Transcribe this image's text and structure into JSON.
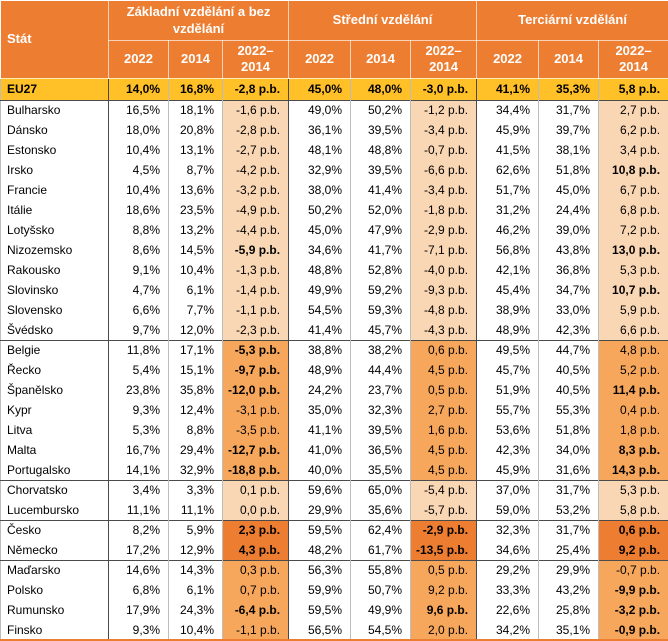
{
  "chart_data": {
    "type": "table",
    "corner_label": "Stát",
    "column_groups": [
      "Základní vzdělání a bez vzdělání",
      "Střední vzdělání",
      "Terciární vzdělání"
    ],
    "sub_columns": [
      "2022",
      "2014",
      "2022–2014"
    ],
    "rows": [
      {
        "name": "EU27",
        "band": "gold",
        "bold_all": true,
        "cells": [
          "14,0%",
          "16,8%",
          "-2,8 p.b.",
          "45,0%",
          "48,0%",
          "-3,0 p.b.",
          "41,1%",
          "35,3%",
          "5,8 p.b."
        ]
      },
      {
        "name": "Bulharsko",
        "band": "light",
        "sep_above": true,
        "cells": [
          "16,5%",
          "18,1%",
          "-1,6 p.b.",
          "49,0%",
          "50,2%",
          "-1,2 p.b.",
          "34,4%",
          "31,7%",
          "2,7 p.b."
        ]
      },
      {
        "name": "Dánsko",
        "band": "light",
        "cells": [
          "18,0%",
          "20,8%",
          "-2,8 p.b.",
          "36,1%",
          "39,5%",
          "-3,4 p.b.",
          "45,9%",
          "39,7%",
          "6,2 p.b."
        ]
      },
      {
        "name": "Estonsko",
        "band": "light",
        "cells": [
          "10,4%",
          "13,1%",
          "-2,7 p.b.",
          "48,1%",
          "48,8%",
          "-0,7 p.b.",
          "41,5%",
          "38,1%",
          "3,4 p.b."
        ]
      },
      {
        "name": "Irsko",
        "band": "light",
        "bold": [
          8
        ],
        "cells": [
          "4,5%",
          "8,7%",
          "-4,2 p.b.",
          "32,9%",
          "39,5%",
          "-6,6 p.b.",
          "62,6%",
          "51,8%",
          "10,8 p.b."
        ]
      },
      {
        "name": "Francie",
        "band": "light",
        "cells": [
          "10,4%",
          "13,6%",
          "-3,2 p.b.",
          "38,0%",
          "41,4%",
          "-3,4 p.b.",
          "51,7%",
          "45,0%",
          "6,7 p.b."
        ]
      },
      {
        "name": "Itálie",
        "band": "light",
        "cells": [
          "18,6%",
          "23,5%",
          "-4,9 p.b.",
          "50,2%",
          "52,0%",
          "-1,8 p.b.",
          "31,2%",
          "24,4%",
          "6,8 p.b."
        ]
      },
      {
        "name": "Lotyšsko",
        "band": "light",
        "cells": [
          "8,8%",
          "13,2%",
          "-4,4 p.b.",
          "45,0%",
          "47,9%",
          "-2,9 p.b.",
          "46,2%",
          "39,0%",
          "7,2 p.b."
        ]
      },
      {
        "name": "Nizozemsko",
        "band": "light",
        "bold": [
          2,
          8
        ],
        "cells": [
          "8,6%",
          "14,5%",
          "-5,9 p.b.",
          "34,6%",
          "41,7%",
          "-7,1 p.b.",
          "56,8%",
          "43,8%",
          "13,0 p.b."
        ]
      },
      {
        "name": "Rakousko",
        "band": "light",
        "cells": [
          "9,1%",
          "10,4%",
          "-1,3 p.b.",
          "48,8%",
          "52,8%",
          "-4,0 p.b.",
          "42,1%",
          "36,8%",
          "5,3 p.b."
        ]
      },
      {
        "name": "Slovinsko",
        "band": "light",
        "bold": [
          8
        ],
        "cells": [
          "4,7%",
          "6,1%",
          "-1,4 p.b.",
          "49,9%",
          "59,2%",
          "-9,3 p.b.",
          "45,4%",
          "34,7%",
          "10,7 p.b."
        ]
      },
      {
        "name": "Slovensko",
        "band": "light",
        "cells": [
          "6,6%",
          "7,7%",
          "-1,1 p.b.",
          "54,5%",
          "59,3%",
          "-4,8 p.b.",
          "38,9%",
          "33,0%",
          "5,9 p.b."
        ]
      },
      {
        "name": "Švédsko",
        "band": "light",
        "cells": [
          "9,7%",
          "12,0%",
          "-2,3 p.b.",
          "41,4%",
          "45,7%",
          "-4,3 p.b.",
          "48,9%",
          "42,3%",
          "6,6 p.b."
        ]
      },
      {
        "name": "Belgie",
        "band": "medium",
        "sep_above": true,
        "bold": [
          2
        ],
        "cells": [
          "11,8%",
          "17,1%",
          "-5,3 p.b.",
          "38,8%",
          "38,2%",
          "0,6 p.b.",
          "49,5%",
          "44,7%",
          "4,8 p.b."
        ]
      },
      {
        "name": "Řecko",
        "band": "medium",
        "bold": [
          2
        ],
        "cells": [
          "5,4%",
          "15,1%",
          "-9,7 p.b.",
          "48,9%",
          "44,4%",
          "4,5 p.b.",
          "45,7%",
          "40,5%",
          "5,2 p.b."
        ]
      },
      {
        "name": "Španělsko",
        "band": "medium",
        "bold": [
          2,
          8
        ],
        "cells": [
          "23,8%",
          "35,8%",
          "-12,0 p.b.",
          "24,2%",
          "23,7%",
          "0,5 p.b.",
          "51,9%",
          "40,5%",
          "11,4 p.b."
        ]
      },
      {
        "name": "Kypr",
        "band": "medium",
        "cells": [
          "9,3%",
          "12,4%",
          "-3,1 p.b.",
          "35,0%",
          "32,3%",
          "2,7 p.b.",
          "55,7%",
          "55,3%",
          "0,4 p.b."
        ]
      },
      {
        "name": "Litva",
        "band": "medium",
        "cells": [
          "5,3%",
          "8,8%",
          "-3,5 p.b.",
          "41,1%",
          "39,5%",
          "1,6 p.b.",
          "53,6%",
          "51,8%",
          "1,8 p.b."
        ]
      },
      {
        "name": "Malta",
        "band": "medium",
        "bold": [
          2,
          8
        ],
        "cells": [
          "16,7%",
          "29,4%",
          "-12,7 p.b.",
          "41,0%",
          "36,5%",
          "4,5 p.b.",
          "42,3%",
          "34,0%",
          "8,3 p.b."
        ]
      },
      {
        "name": "Portugalsko",
        "band": "medium",
        "bold": [
          2,
          8
        ],
        "cells": [
          "14,1%",
          "32,9%",
          "-18,8 p.b.",
          "40,0%",
          "35,5%",
          "4,5 p.b.",
          "45,9%",
          "31,6%",
          "14,3 p.b."
        ]
      },
      {
        "name": "Chorvatsko",
        "band": "light",
        "sep_above": true,
        "cells": [
          "3,4%",
          "3,3%",
          "0,1 p.b.",
          "59,6%",
          "65,0%",
          "-5,4 p.b.",
          "37,0%",
          "31,7%",
          "5,3 p.b."
        ]
      },
      {
        "name": "Lucembursko",
        "band": "light",
        "cells": [
          "11,1%",
          "11,1%",
          "0,0 p.b.",
          "29,9%",
          "35,6%",
          "-5,7 p.b.",
          "59,0%",
          "53,2%",
          "5,8 p.b."
        ]
      },
      {
        "name": "Česko",
        "band": "dark",
        "sep_above": true,
        "bold": [
          2,
          5,
          8
        ],
        "cells": [
          "8,2%",
          "5,9%",
          "2,3 p.b.",
          "59,5%",
          "62,4%",
          "-2,9 p.b.",
          "32,3%",
          "31,7%",
          "0,6 p.b."
        ]
      },
      {
        "name": "Německo",
        "band": "dark",
        "bold": [
          2,
          5,
          8
        ],
        "cells": [
          "17,2%",
          "12,9%",
          "4,3 p.b.",
          "48,2%",
          "61,7%",
          "-13,5 p.b.",
          "34,6%",
          "25,4%",
          "9,2 p.b."
        ]
      },
      {
        "name": "Maďarsko",
        "band": "medium",
        "sep_above": true,
        "cells": [
          "14,6%",
          "14,3%",
          "0,3 p.b.",
          "56,3%",
          "55,8%",
          "0,5 p.b.",
          "29,2%",
          "29,9%",
          "-0,7 p.b."
        ]
      },
      {
        "name": "Polsko",
        "band": "medium",
        "bold": [
          8
        ],
        "cells": [
          "6,8%",
          "6,1%",
          "0,7 p.b.",
          "59,9%",
          "50,7%",
          "9,2 p.b.",
          "33,3%",
          "43,2%",
          "-9,9 p.b."
        ]
      },
      {
        "name": "Rumunsko",
        "band": "medium",
        "bold": [
          2,
          5,
          8
        ],
        "cells": [
          "17,9%",
          "24,3%",
          "-6,4 p.b.",
          "59,5%",
          "49,9%",
          "9,6 p.b.",
          "22,6%",
          "25,8%",
          "-3,2 p.b."
        ]
      },
      {
        "name": "Finsko",
        "band": "medium",
        "bold": [
          8
        ],
        "cells": [
          "9,3%",
          "10,4%",
          "-1,1 p.b.",
          "56,5%",
          "54,5%",
          "2,0 p.b.",
          "34,2%",
          "35,1%",
          "-0,9 p.b."
        ]
      }
    ]
  },
  "colors": {
    "header_bg": "#ED7D31",
    "header_text": "#FFFFFF",
    "eu27_row_bg": "#FFC028",
    "diff_band_light": "#FAD7B4",
    "diff_band_medium": "#F7A75C",
    "diff_band_dark": "#ED7D31",
    "grid_inner": "#BDBDBD",
    "grid_group_separator": "#4A4A4A",
    "body_text": "#000000"
  }
}
